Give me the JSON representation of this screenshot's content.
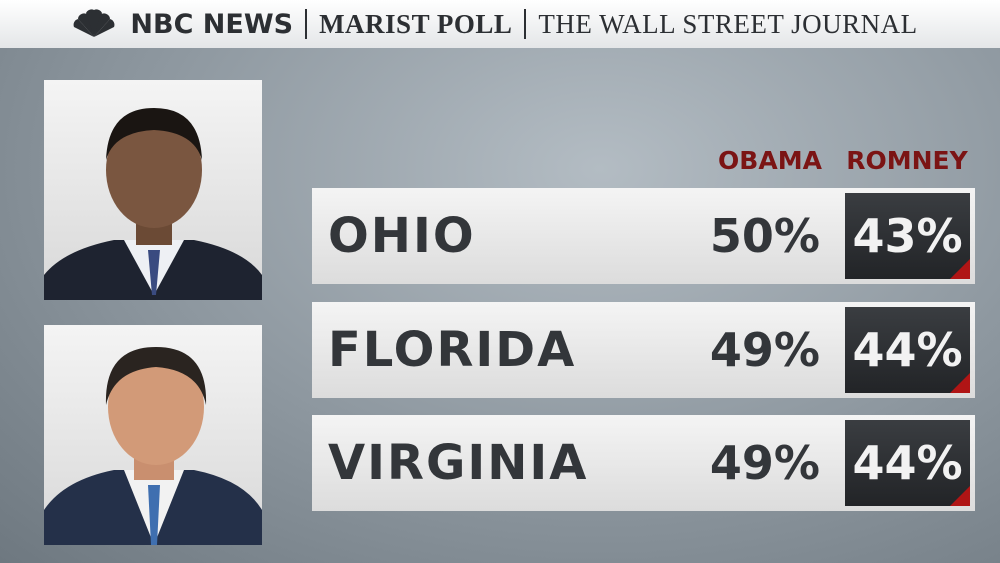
{
  "header": {
    "sources": [
      "NBC NEWS",
      "MARIST POLL",
      "THE WALL STREET JOURNAL"
    ]
  },
  "table": {
    "columns": [
      "OBAMA",
      "ROMNEY"
    ],
    "rows": [
      [
        "OHIO",
        "50%",
        "43%"
      ],
      [
        "FLORIDA",
        "49%",
        "44%"
      ],
      [
        "VIRGINIA",
        "49%",
        "44%"
      ]
    ]
  }
}
